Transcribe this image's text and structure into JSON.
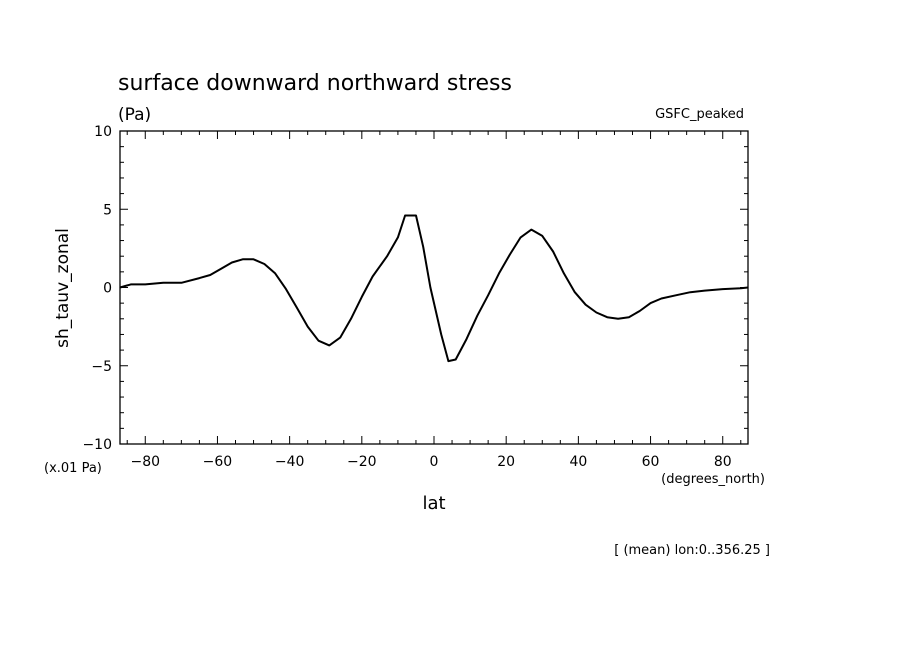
{
  "chart_data": {
    "type": "line",
    "title": "surface downward northward stress",
    "units": "(Pa)",
    "dataset": "GSFC_peaked",
    "ylabel": "sh_tauv_zonal",
    "yscale_note": "(x.01 Pa)",
    "xlabel": "lat",
    "xunits": "(degrees_north)",
    "footnote": "[ (mean) lon:0..356.25 ]",
    "xlim": [
      -87,
      87
    ],
    "ylim": [
      -10,
      10
    ],
    "xticks": [
      -80,
      -60,
      -40,
      -20,
      0,
      20,
      40,
      60,
      80
    ],
    "xtick_labels": [
      "−80",
      "−60",
      "−40",
      "−20",
      "0",
      "20",
      "40",
      "60",
      "80"
    ],
    "yticks": [
      10,
      5,
      0,
      -5,
      -10
    ],
    "ytick_labels": [
      "10",
      "5",
      "0",
      "−5",
      "−10"
    ],
    "series": [
      {
        "name": "sh_tauv_zonal",
        "x": [
          -87,
          -84,
          -80,
          -75,
          -70,
          -65,
          -62,
          -59,
          -56,
          -53,
          -50,
          -47,
          -44,
          -41,
          -38,
          -35,
          -32,
          -29,
          -26,
          -23,
          -20,
          -17,
          -13,
          -10,
          -8,
          -5,
          -3,
          -1,
          2,
          4,
          6,
          9,
          12,
          15,
          18,
          21,
          24,
          27,
          30,
          33,
          36,
          39,
          42,
          45,
          48,
          51,
          54,
          57,
          60,
          63,
          67,
          71,
          75,
          80,
          85,
          87
        ],
        "values": [
          0.0,
          0.2,
          0.2,
          0.3,
          0.3,
          0.6,
          0.8,
          1.2,
          1.6,
          1.8,
          1.8,
          1.5,
          0.9,
          -0.1,
          -1.3,
          -2.5,
          -3.4,
          -3.7,
          -3.2,
          -2.0,
          -0.6,
          0.7,
          2.0,
          3.2,
          4.6,
          4.6,
          2.6,
          0.0,
          -3.0,
          -4.7,
          -4.6,
          -3.3,
          -1.8,
          -0.5,
          0.9,
          2.1,
          3.2,
          3.7,
          3.3,
          2.3,
          0.9,
          -0.3,
          -1.1,
          -1.6,
          -1.9,
          -2.0,
          -1.9,
          -1.5,
          -1.0,
          -0.7,
          -0.5,
          -0.3,
          -0.2,
          -0.1,
          -0.05,
          0.0
        ]
      }
    ]
  }
}
